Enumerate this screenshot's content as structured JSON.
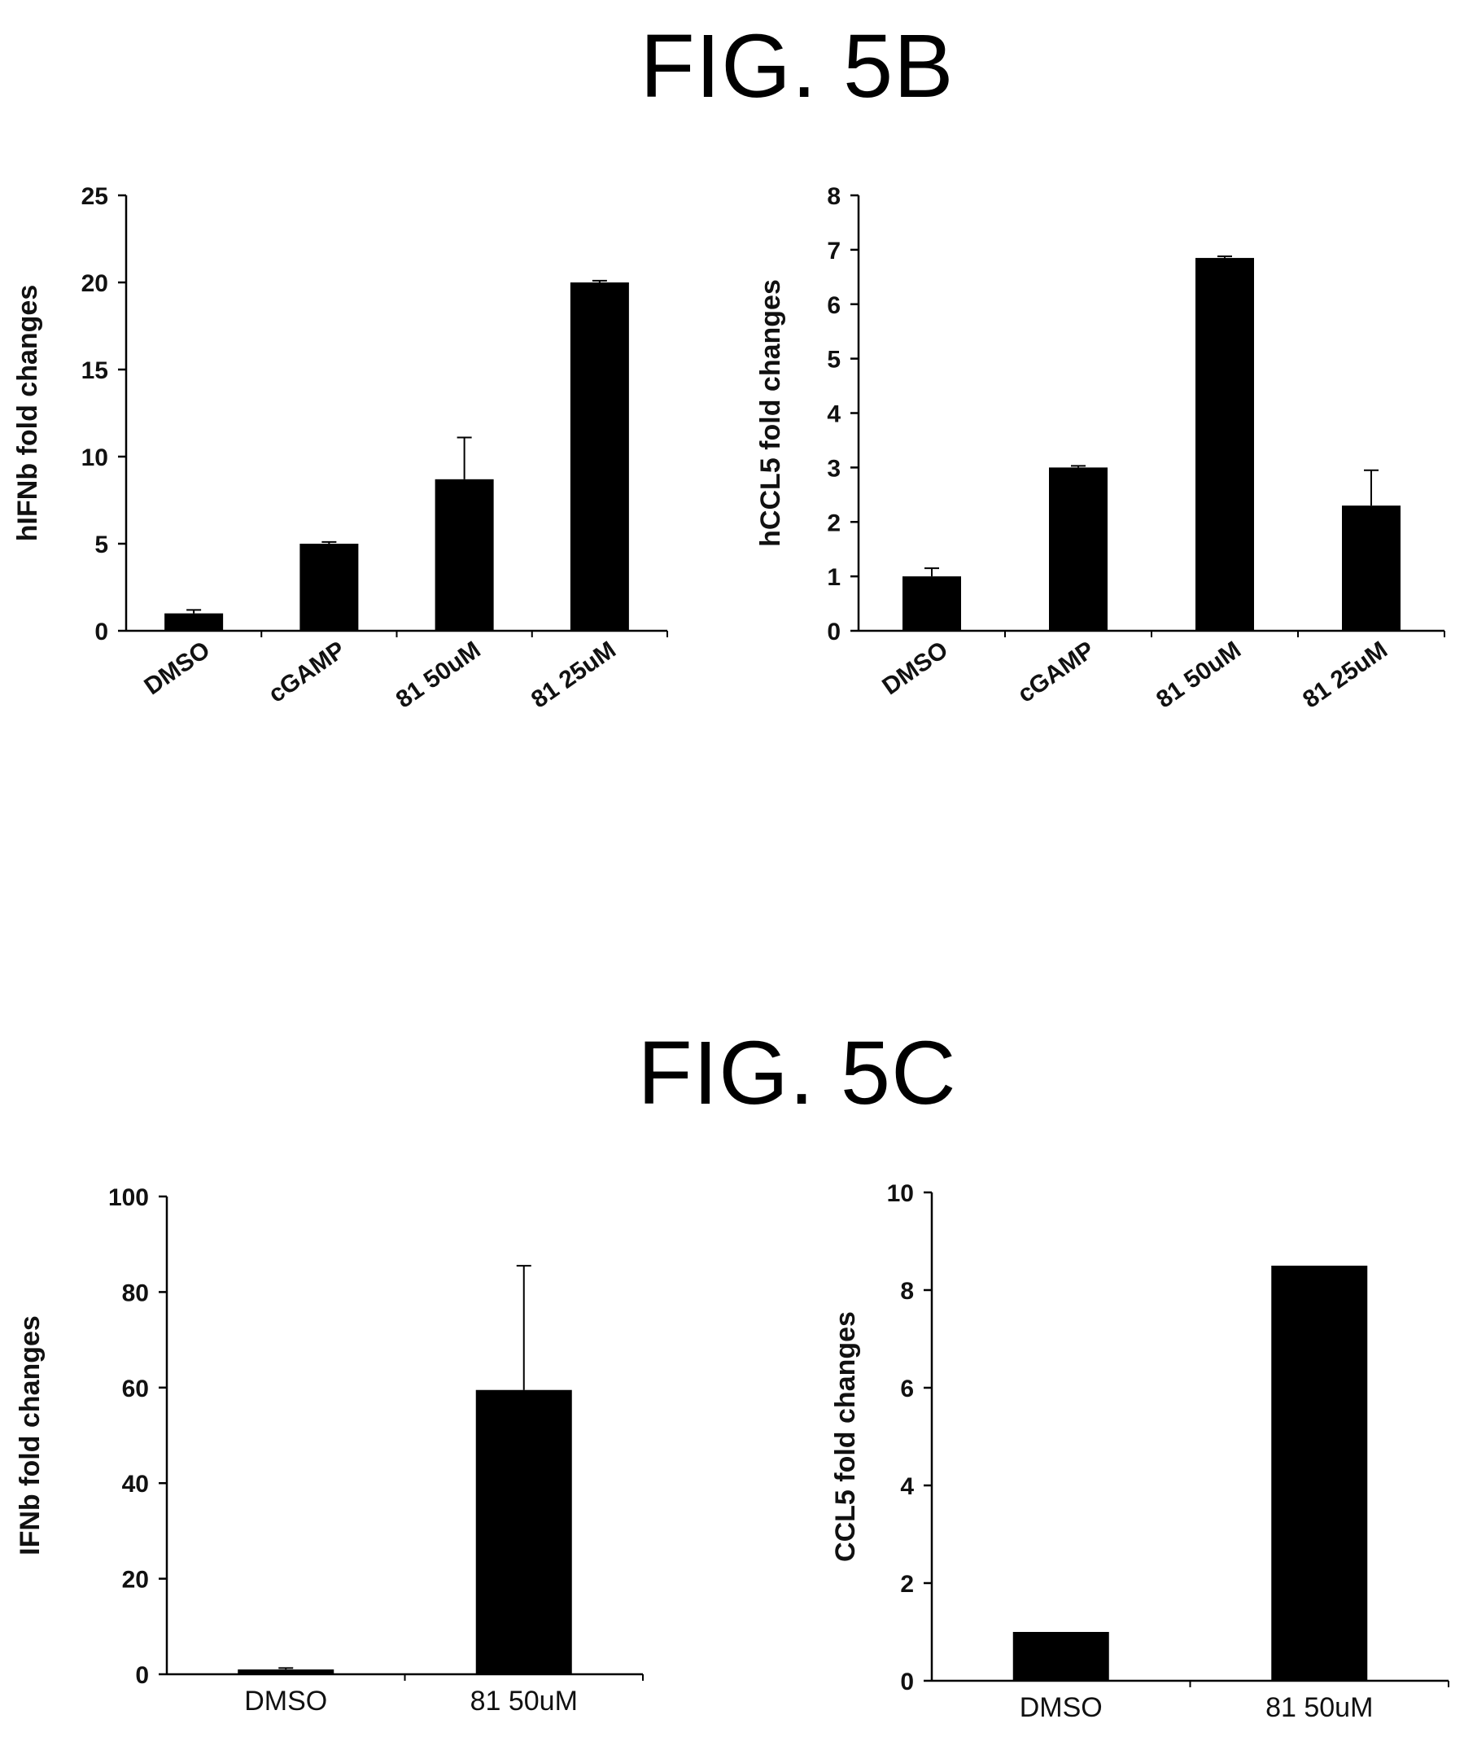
{
  "figures": {
    "fig5b_title": "FIG. 5B",
    "fig5c_title": "FIG. 5C"
  },
  "chart_data": [
    {
      "type": "bar",
      "categories": [
        "DMSO",
        "cGAMP",
        "81 50uM",
        "81 25uM"
      ],
      "values": [
        1.0,
        5.0,
        8.7,
        20.0
      ],
      "error_upper": [
        0.2,
        0.1,
        2.4,
        0.1
      ],
      "ylabel": "hIFNb fold changes",
      "ylim": [
        0,
        25
      ],
      "yticks": [
        0,
        5,
        10,
        15,
        20,
        25
      ],
      "grid": false,
      "bar_color": "#000000"
    },
    {
      "type": "bar",
      "categories": [
        "DMSO",
        "cGAMP",
        "81 50uM",
        "81 25uM"
      ],
      "values": [
        1.0,
        3.0,
        6.85,
        2.3
      ],
      "error_upper": [
        0.15,
        0.03,
        0.03,
        0.65
      ],
      "ylabel": "hCCL5 fold changes",
      "ylim": [
        0,
        8
      ],
      "yticks": [
        0,
        1,
        2,
        3,
        4,
        5,
        6,
        7,
        8
      ],
      "grid": false,
      "bar_color": "#000000"
    },
    {
      "type": "bar",
      "categories": [
        "DMSO",
        "81 50uM"
      ],
      "values": [
        1.0,
        59.5
      ],
      "error_upper": [
        0.3,
        26.0
      ],
      "ylabel": "IFNb fold changes",
      "ylim": [
        0,
        100
      ],
      "yticks": [
        0,
        20,
        40,
        60,
        80,
        100
      ],
      "grid": false,
      "bar_color": "#000000"
    },
    {
      "type": "bar",
      "categories": [
        "DMSO",
        "81 50uM"
      ],
      "values": [
        1.0,
        8.5
      ],
      "error_upper": [
        0,
        0
      ],
      "ylabel": "CCL5 fold changes",
      "ylim": [
        0,
        10
      ],
      "yticks": [
        0,
        2,
        4,
        6,
        8,
        10
      ],
      "grid": false,
      "bar_color": "#000000"
    }
  ]
}
